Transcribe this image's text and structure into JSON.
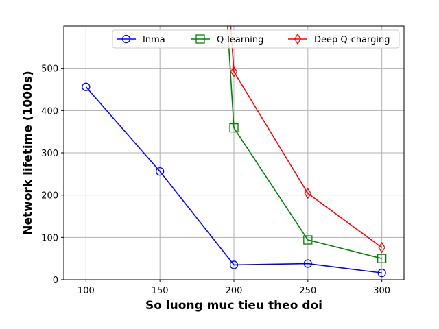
{
  "chart_data": {
    "type": "line",
    "title": "",
    "xlabel": "So luong muc tieu theo doi",
    "ylabel": "Network lifetime (1000s)",
    "xlim": [
      85,
      315
    ],
    "ylim": [
      0,
      600
    ],
    "xticks": [
      100,
      150,
      200,
      250,
      300
    ],
    "yticks": [
      0,
      100,
      200,
      300,
      400,
      500
    ],
    "grid": true,
    "legend_position": "top-right",
    "series": [
      {
        "name": "Inma",
        "color": "#0000ff",
        "marker": "circle",
        "x": [
          100,
          150,
          200,
          250,
          300
        ],
        "y": [
          456,
          256,
          35,
          38,
          16
        ]
      },
      {
        "name": "Q-learning",
        "color": "#008000",
        "marker": "square",
        "x": [
          195,
          200,
          250,
          300
        ],
        "y": [
          640,
          359,
          94,
          50
        ]
      },
      {
        "name": "Deep Q-charging",
        "color": "#ff0000",
        "marker": "diamond",
        "x": [
          197,
          200,
          250,
          300
        ],
        "y": [
          640,
          492,
          204,
          76
        ]
      }
    ]
  }
}
